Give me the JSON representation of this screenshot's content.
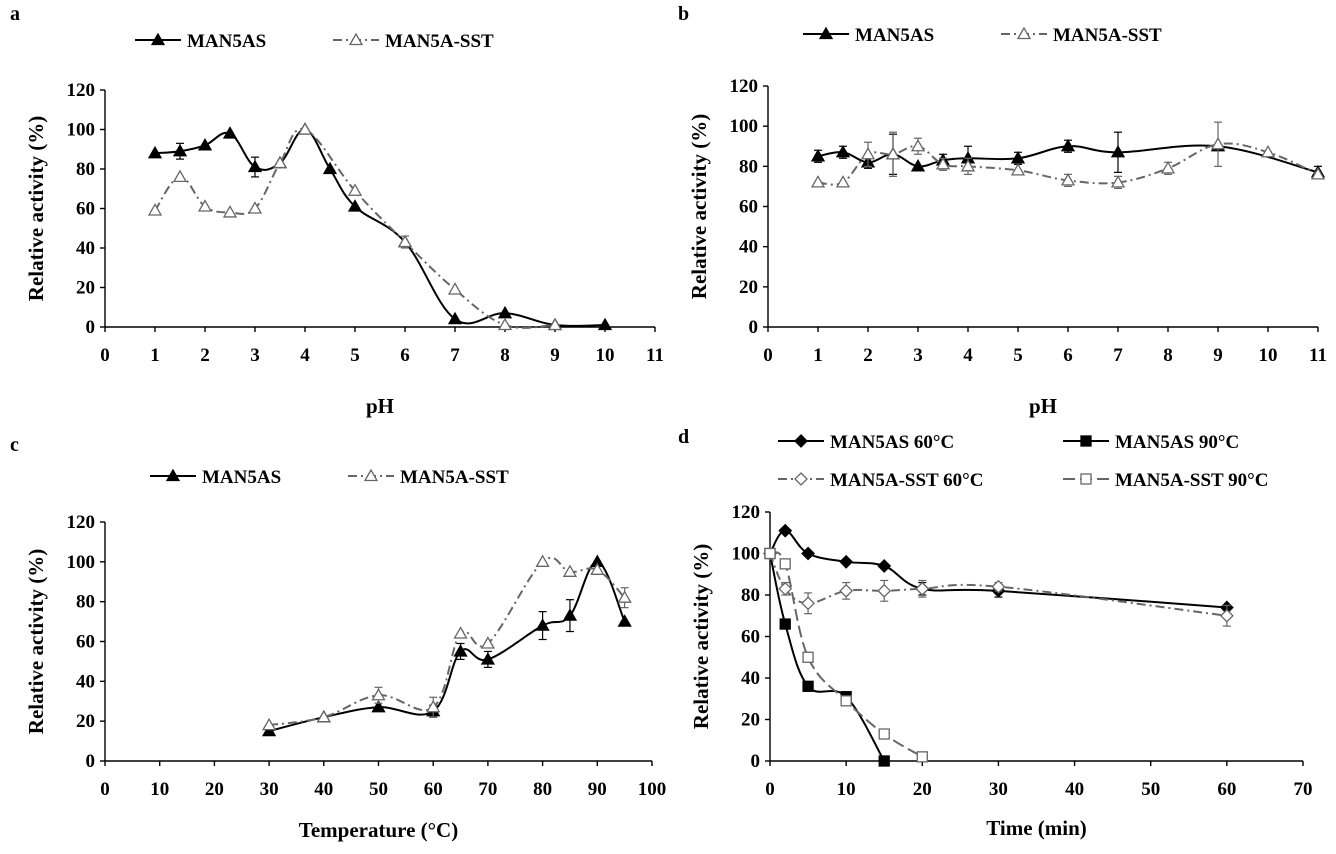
{
  "chart_data": [
    {
      "panel": "a",
      "type": "line",
      "xlabel": "pH",
      "ylabel": "Relative activity (%)",
      "xlim": [
        0,
        11
      ],
      "ylim": [
        0,
        120
      ],
      "xticks": [
        0,
        1,
        2,
        3,
        4,
        5,
        6,
        7,
        8,
        9,
        10,
        11
      ],
      "yticks": [
        0,
        20,
        40,
        60,
        80,
        100,
        120
      ],
      "grid": false,
      "legend_position": "top",
      "series": [
        {
          "name": "MAN5AS",
          "marker": "filled-triangle",
          "dash": "solid",
          "x": [
            1,
            1.5,
            2,
            2.5,
            3,
            3.5,
            4,
            4.5,
            5,
            6,
            7,
            8,
            9,
            10
          ],
          "y": [
            88,
            89,
            92,
            98,
            81,
            83,
            100,
            80,
            61,
            43,
            4,
            7,
            1,
            1
          ],
          "err": [
            0,
            4,
            0,
            0,
            5,
            0,
            0,
            0,
            0,
            0,
            0,
            0,
            0,
            0
          ]
        },
        {
          "name": "MAN5A-SST",
          "marker": "open-triangle",
          "dash": "dashdot",
          "x": [
            1,
            1.5,
            2,
            2.5,
            3,
            3.5,
            4,
            5,
            6,
            7,
            8,
            9
          ],
          "y": [
            59,
            76,
            61,
            58,
            60,
            83,
            100,
            69,
            43,
            19,
            1,
            1
          ],
          "err": [
            0,
            0,
            0,
            0,
            0,
            0,
            0,
            0,
            3,
            0,
            0,
            0
          ]
        }
      ]
    },
    {
      "panel": "b",
      "type": "line",
      "xlabel": "pH",
      "ylabel": "Relative activity (%)",
      "xlim": [
        0,
        11
      ],
      "ylim": [
        0,
        120
      ],
      "xticks": [
        0,
        1,
        2,
        3,
        4,
        5,
        6,
        7,
        8,
        9,
        10,
        11
      ],
      "yticks": [
        0,
        20,
        40,
        60,
        80,
        100,
        120
      ],
      "grid": false,
      "legend_position": "top",
      "series": [
        {
          "name": "MAN5AS",
          "marker": "filled-triangle",
          "dash": "solid",
          "x": [
            1,
            1.5,
            2,
            2.5,
            3,
            3.5,
            4,
            5,
            6,
            7,
            9,
            11
          ],
          "y": [
            85,
            87,
            82,
            86,
            80,
            83,
            84,
            84,
            90,
            87,
            90,
            77
          ],
          "err": [
            3,
            3,
            3,
            10,
            0,
            3,
            6,
            3,
            3,
            10,
            0,
            3
          ]
        },
        {
          "name": "MAN5A-SST",
          "marker": "open-triangle",
          "dash": "dashdot",
          "x": [
            1,
            1.5,
            2,
            2.5,
            3,
            3.5,
            4,
            5,
            6,
            7,
            8,
            9,
            10,
            11
          ],
          "y": [
            72,
            72,
            86,
            86,
            90,
            81,
            80,
            78,
            73,
            72,
            79,
            91,
            87,
            76
          ],
          "err": [
            0,
            0,
            6,
            11,
            4,
            3,
            4,
            0,
            3,
            3,
            3,
            11,
            0,
            0
          ]
        }
      ]
    },
    {
      "panel": "c",
      "type": "line",
      "xlabel": "Temperature (°C)",
      "ylabel": "Relative activity (%)",
      "xlim": [
        0,
        100
      ],
      "ylim": [
        0,
        120
      ],
      "xticks": [
        0,
        10,
        20,
        30,
        40,
        50,
        60,
        70,
        80,
        90,
        100
      ],
      "yticks": [
        0,
        20,
        40,
        60,
        80,
        100,
        120
      ],
      "grid": false,
      "legend_position": "top",
      "series": [
        {
          "name": "MAN5AS",
          "marker": "filled-triangle",
          "dash": "solid",
          "x": [
            30,
            40,
            50,
            60,
            65,
            70,
            80,
            85,
            90,
            95
          ],
          "y": [
            15,
            22,
            27,
            25,
            55,
            51,
            68,
            73,
            100,
            70
          ],
          "err": [
            0,
            0,
            0,
            3,
            4,
            4,
            7,
            8,
            0,
            0
          ]
        },
        {
          "name": "MAN5A-SST",
          "marker": "open-triangle",
          "dash": "dashdot",
          "x": [
            30,
            40,
            50,
            60,
            65,
            70,
            80,
            85,
            90,
            95
          ],
          "y": [
            18,
            22,
            33,
            27,
            64,
            59,
            100,
            95,
            96,
            82
          ],
          "err": [
            0,
            0,
            4,
            5,
            0,
            0,
            0,
            0,
            0,
            5
          ]
        }
      ]
    },
    {
      "panel": "d",
      "type": "line",
      "xlabel": "Time (min)",
      "ylabel": "Relative activity (%)",
      "xlim": [
        0,
        70
      ],
      "ylim": [
        0,
        120
      ],
      "xticks": [
        0,
        10,
        20,
        30,
        40,
        50,
        60,
        70
      ],
      "yticks": [
        0,
        20,
        40,
        60,
        80,
        100,
        120
      ],
      "grid": false,
      "legend_position": "top",
      "series": [
        {
          "name": "MAN5AS 60°C",
          "marker": "filled-diamond",
          "dash": "solid",
          "x": [
            0,
            2,
            5,
            10,
            15,
            20,
            30,
            60
          ],
          "y": [
            100,
            111,
            100,
            96,
            94,
            83,
            82,
            74
          ],
          "err": [
            0,
            0,
            0,
            0,
            0,
            3,
            3,
            0
          ]
        },
        {
          "name": "MAN5AS 90°C",
          "marker": "filled-square",
          "dash": "solid",
          "x": [
            0,
            2,
            5,
            10,
            15
          ],
          "y": [
            100,
            66,
            36,
            31,
            0
          ],
          "err": [
            0,
            0,
            0,
            0,
            0
          ]
        },
        {
          "name": "MAN5A-SST 60°C",
          "marker": "open-diamond",
          "dash": "dashdot",
          "x": [
            0,
            2,
            5,
            10,
            15,
            20,
            30,
            60
          ],
          "y": [
            100,
            83,
            76,
            82,
            82,
            83,
            84,
            70
          ],
          "err": [
            0,
            3,
            5,
            4,
            5,
            4,
            2,
            5
          ]
        },
        {
          "name": "MAN5A-SST 90°C",
          "marker": "open-square",
          "dash": "longdash",
          "x": [
            0,
            2,
            5,
            10,
            15,
            20
          ],
          "y": [
            100,
            95,
            50,
            29,
            13,
            2
          ],
          "err": [
            0,
            0,
            0,
            0,
            0,
            0
          ]
        }
      ]
    }
  ]
}
